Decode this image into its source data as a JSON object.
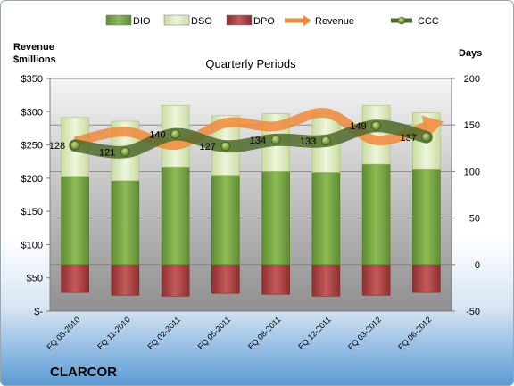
{
  "chart_data": {
    "type": "bar",
    "title": "Quarterly Periods",
    "company": "CLARCOR",
    "left_axis_title": [
      "Revenue",
      "$millions"
    ],
    "right_axis_title": "Days",
    "left_ylim": [
      0,
      350
    ],
    "left_ticks": [
      0,
      50,
      100,
      150,
      200,
      250,
      300,
      350
    ],
    "left_tick_labels": [
      "$-",
      "$50",
      "$100",
      "$150",
      "$200",
      "$250",
      "$300",
      "$350"
    ],
    "right_ylim": [
      -50,
      200
    ],
    "right_ticks": [
      -50,
      0,
      50,
      100,
      150,
      200
    ],
    "right_tick_labels": [
      "-50",
      "0",
      "50",
      "100",
      "150",
      "200"
    ],
    "categories": [
      "FQ 08-2010",
      "FQ 11-2010",
      "FQ 02-2011",
      "FQ 05-2011",
      "FQ 08-2011",
      "FQ 12-2011",
      "FQ 03-2012",
      "FQ 06-2012"
    ],
    "series": [
      {
        "name": "DIO",
        "axis": "right",
        "values": [
          95,
          90,
          105,
          96,
          100,
          99,
          108,
          102
        ]
      },
      {
        "name": "DSO",
        "axis": "right",
        "values": [
          63,
          64,
          66,
          64,
          62,
          63,
          63,
          61
        ]
      },
      {
        "name": "DPO",
        "axis": "right",
        "values": [
          -30,
          -33,
          -34,
          -31,
          -32,
          -34,
          -33,
          -30
        ]
      },
      {
        "name": "Revenue",
        "axis": "left",
        "values": [
          255,
          270,
          250,
          283,
          278,
          298,
          257,
          278
        ]
      },
      {
        "name": "CCC",
        "axis": "right",
        "values": [
          128,
          121,
          140,
          127,
          134,
          133,
          149,
          137
        ]
      }
    ],
    "ccc_labels": [
      "128",
      "121",
      "140",
      "127",
      "134",
      "133",
      "149",
      "137"
    ],
    "colors": {
      "DIO": "#7ca84a",
      "DSO": "#e2efc6",
      "DPO": "#b14747",
      "Revenue": "#f08a3c",
      "CCC": "#4f6a2a"
    },
    "legend": {
      "placement": "top",
      "items": [
        "DIO",
        "DSO",
        "DPO",
        "Revenue",
        "CCC"
      ]
    },
    "grid": true
  }
}
